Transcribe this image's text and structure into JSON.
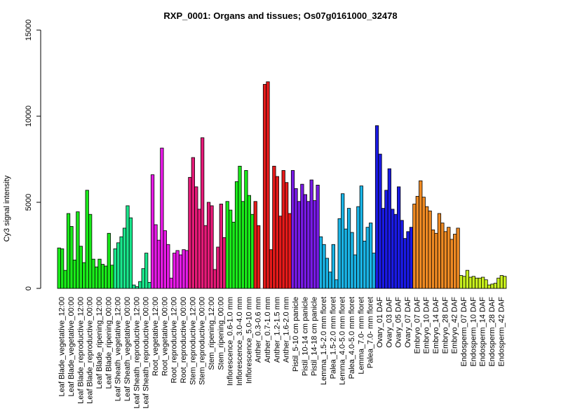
{
  "chart_data": {
    "type": "bar",
    "title": "RXP_0001: Organs and tissues; Os07g0161000_32478",
    "xlabel": "",
    "ylabel": "Cy3 signal intensity",
    "ylim": [
      0,
      15000
    ],
    "yticks": [
      0,
      5000,
      10000,
      15000
    ],
    "grid": false,
    "groups": [
      {
        "label": "Leaf Blade_vegetative_12:00",
        "color": "#1aeb1a",
        "values": [
          2350,
          2300,
          1050
        ]
      },
      {
        "label": "Leaf Blade_vegetative_00:00",
        "color": "#1aeb1a",
        "values": [
          4350,
          3600,
          1650
        ]
      },
      {
        "label": "Leaf Blade_reproductive_12:00",
        "color": "#1aeb1a",
        "values": [
          4450,
          2450,
          1500
        ]
      },
      {
        "label": "Leaf Blade_reproductive_00:00",
        "color": "#1aeb1a",
        "values": [
          5700,
          4300,
          1700
        ]
      },
      {
        "label": "Leaf Blade_ripening_12:00",
        "color": "#1aeb1a",
        "values": [
          1250,
          1700,
          1400
        ]
      },
      {
        "label": "Leaf Blade_ripening_00:00",
        "color": "#1aeb1a",
        "values": [
          1300,
          3200,
          1350
        ]
      },
      {
        "label": "Leaf Sheath_vegetative_12:00",
        "color": "#1ae68c",
        "values": [
          2300,
          2650,
          3000
        ]
      },
      {
        "label": "Leaf Sheath_vegetative_00:00",
        "color": "#1ae68c",
        "values": [
          3500,
          4800,
          4100
        ]
      },
      {
        "label": "Leaf Sheath_reproductive_12:00",
        "color": "#1ae68c",
        "values": [
          200,
          100,
          400
        ]
      },
      {
        "label": "Leaf Sheath_reproductive_00:00",
        "color": "#1ae68c",
        "values": [
          1150,
          2050,
          350
        ]
      },
      {
        "label": "Root_vegetative_12:00",
        "color": "#e61ae6",
        "values": [
          6600,
          3700,
          2800
        ]
      },
      {
        "label": "Root_vegetative_00:00",
        "color": "#e61ae6",
        "values": [
          8150,
          3350,
          2550
        ]
      },
      {
        "label": "Root_reproductive_12:00",
        "color": "#e61ae6",
        "values": [
          600,
          2050,
          2200
        ]
      },
      {
        "label": "Root_reproductive_00:00",
        "color": "#e61ae6",
        "values": [
          1950,
          2250,
          2200
        ]
      },
      {
        "label": "Stem_reproductive_12:00",
        "color": "#e61a78",
        "values": [
          6450,
          7600,
          5900
        ]
      },
      {
        "label": "Stem_reproductive_00:00",
        "color": "#e61a78",
        "values": [
          4600,
          8750,
          3650
        ]
      },
      {
        "label": "Stem_ripening_12:00",
        "color": "#e61a78",
        "values": [
          5000,
          4800,
          1100
        ]
      },
      {
        "label": "Stem_ripening_00:00",
        "color": "#e61a78",
        "values": [
          2400,
          4900,
          2950
        ]
      },
      {
        "label": "Inflorescence_0.6-1.0 mm",
        "color": "#1aeb1a",
        "values": [
          5050,
          4550,
          3850
        ]
      },
      {
        "label": "Inflorescence_3.0-4.0 mm",
        "color": "#1aeb1a",
        "values": [
          6200,
          7100,
          5050
        ]
      },
      {
        "label": "Inflorescence_5.0-10 mm",
        "color": "#1aeb1a",
        "values": [
          6850,
          5400,
          4300
        ]
      },
      {
        "label": "Anther_0.3-0.6 mm",
        "color": "#e61a1a",
        "values": [
          5050,
          3650
        ]
      },
      {
        "label": "Anther_0.7-1.0 mm",
        "color": "#e61a1a",
        "values": [
          11850,
          12000,
          2250
        ]
      },
      {
        "label": "Anther_1.2-1.5 mm",
        "color": "#e61a1a",
        "values": [
          7100,
          6500,
          4200
        ]
      },
      {
        "label": "Anther_1.6-2.0 mm",
        "color": "#e61a1a",
        "values": [
          6850,
          6150,
          4350
        ]
      },
      {
        "label": "Pistil_5-10 cm panicle",
        "color": "#781ae6",
        "values": [
          6850,
          5800,
          5050
        ]
      },
      {
        "label": "Pistil_10-14 cm panicle",
        "color": "#781ae6",
        "values": [
          6050,
          5450,
          5050
        ]
      },
      {
        "label": "Pistil_14-18 cm panicle",
        "color": "#781ae6",
        "values": [
          6300,
          5100,
          6000
        ]
      },
      {
        "label": "Lemma_1.5-2.0 mm floret",
        "color": "#1ab4e6",
        "values": [
          3000,
          2550,
          1750
        ]
      },
      {
        "label": "Palea_1.5-2.0 mm floret",
        "color": "#1ab4e6",
        "values": [
          950,
          2550,
          500
        ]
      },
      {
        "label": "Lemma_4.0-5.0 mm floret",
        "color": "#1ab4e6",
        "values": [
          4050,
          5500,
          3450
        ]
      },
      {
        "label": "Palea_4.0-5.0 mm floret",
        "color": "#1ab4e6",
        "values": [
          4650,
          3250,
          1950
        ]
      },
      {
        "label": "Lemma_7.0- mm floret",
        "color": "#1ab4e6",
        "values": [
          4750,
          5950,
          2750
        ]
      },
      {
        "label": "Palea_7.0- mm floret",
        "color": "#1ab4e6",
        "values": [
          3550,
          3800,
          2050
        ]
      },
      {
        "label": "Ovary_01 DAF",
        "color": "#1a1ae6",
        "values": [
          9450,
          7800,
          4650
        ]
      },
      {
        "label": "Ovary_03 DAF",
        "color": "#1a1ae6",
        "values": [
          5700,
          6950,
          4600
        ]
      },
      {
        "label": "Ovary_05 DAF",
        "color": "#1a1ae6",
        "values": [
          4300,
          5900,
          3950
        ]
      },
      {
        "label": "Ovary_07 DAF",
        "color": "#1a1ae6",
        "values": [
          2900,
          3300,
          3550
        ]
      },
      {
        "label": "Embryo_07 DAF",
        "color": "#ef8a23",
        "values": [
          4900,
          5350,
          6250
        ]
      },
      {
        "label": "Embryo_10 DAF",
        "color": "#ef8a23",
        "values": [
          5300,
          4750,
          4500
        ]
      },
      {
        "label": "Embryo_14 DAF",
        "color": "#ef8a23",
        "values": [
          3400,
          3200,
          4350
        ]
      },
      {
        "label": "Embryo_28 DAF",
        "color": "#ef8a23",
        "values": [
          3800,
          3300,
          3550
        ]
      },
      {
        "label": "Embryo_42 DAF",
        "color": "#ef8a23",
        "values": [
          2850,
          3150,
          3500
        ]
      },
      {
        "label": "Endosperm_07 DAF",
        "color": "#c8f01e",
        "values": [
          750,
          700,
          1050
        ]
      },
      {
        "label": "Endosperm_10 DAF",
        "color": "#c8f01e",
        "values": [
          650,
          700,
          600
        ]
      },
      {
        "label": "Endosperm_14 DAF",
        "color": "#c8f01e",
        "values": [
          600,
          650,
          500
        ]
      },
      {
        "label": "Endosperm_28 DAF",
        "color": "#c8f01e",
        "values": [
          200,
          250,
          300
        ]
      },
      {
        "label": "Endosperm_42 DAF",
        "color": "#c8f01e",
        "values": [
          600,
          750,
          700
        ]
      }
    ]
  }
}
